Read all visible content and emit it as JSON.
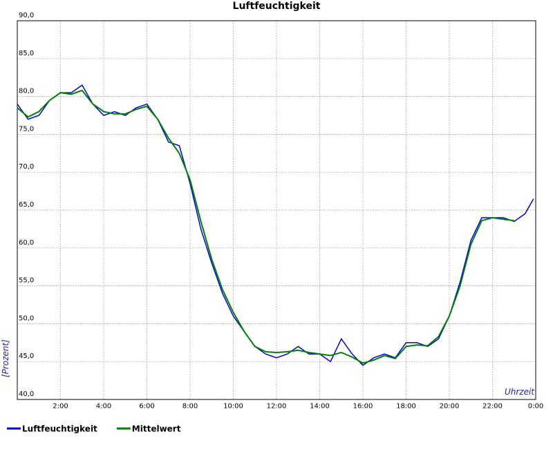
{
  "chart_data": {
    "type": "line",
    "title": "Luftfeuchtigkeit",
    "x_label": "Uhrzeit",
    "y_label": "[Prozent]",
    "x": [
      0,
      0.5,
      1,
      1.5,
      2,
      2.5,
      3,
      3.5,
      4,
      4.5,
      5,
      5.5,
      6,
      6.5,
      7,
      7.5,
      8,
      8.5,
      9,
      9.5,
      10,
      10.5,
      11,
      11.5,
      12,
      12.5,
      13,
      13.5,
      14,
      14.5,
      15,
      15.5,
      16,
      16.5,
      17,
      17.5,
      18,
      18.5,
      19,
      19.5,
      20,
      20.5,
      21,
      21.5,
      22,
      22.5,
      23,
      23.5,
      23.9
    ],
    "series": [
      {
        "name": "Luftfeuchtigkeit",
        "color": "#0000ee",
        "values": [
          79,
          77,
          77.5,
          79.5,
          80.5,
          80.5,
          81.5,
          79,
          77.5,
          78,
          77.5,
          78.5,
          79,
          77,
          74,
          73.5,
          68.5,
          62.5,
          58,
          54,
          51,
          49,
          47,
          46,
          45.5,
          46,
          47,
          46,
          46,
          45,
          48,
          46,
          44.5,
          45.5,
          46,
          45.5,
          47.5,
          47.5,
          47,
          48,
          51,
          55.5,
          61,
          64,
          64,
          64,
          63.5,
          64.5,
          66.5
        ]
      },
      {
        "name": "Mittelwert",
        "color": "#008000",
        "values": [
          78.5,
          77.3,
          78,
          79.5,
          80.5,
          80.3,
          80.8,
          79,
          78,
          77.7,
          77.7,
          78.3,
          78.7,
          77,
          74.5,
          72.5,
          69,
          63.5,
          58.5,
          54.5,
          51.5,
          49,
          47,
          46.3,
          46.2,
          46.3,
          46.5,
          46.2,
          46,
          45.8,
          46.2,
          45.6,
          44.8,
          45.2,
          45.8,
          45.4,
          47,
          47.2,
          47.1,
          48.3,
          51,
          55,
          60.5,
          63.6,
          64,
          63.8,
          63.6,
          null,
          null
        ]
      }
    ],
    "xlim": [
      0,
      24
    ],
    "xticks": [
      {
        "value": 2,
        "label": "2:00"
      },
      {
        "value": 4,
        "label": "4:00"
      },
      {
        "value": 6,
        "label": "6:00"
      },
      {
        "value": 8,
        "label": "8:00"
      },
      {
        "value": 10,
        "label": "10:00"
      },
      {
        "value": 12,
        "label": "12:00"
      },
      {
        "value": 14,
        "label": "14:00"
      },
      {
        "value": 16,
        "label": "16:00"
      },
      {
        "value": 18,
        "label": "18:00"
      },
      {
        "value": 20,
        "label": "20:00"
      },
      {
        "value": 22,
        "label": "22:00"
      },
      {
        "value": 24,
        "label": "0:00"
      }
    ],
    "ylim": [
      40,
      90
    ],
    "yticks": [
      {
        "value": 40,
        "label": "40,0"
      },
      {
        "value": 45,
        "label": "45,0"
      },
      {
        "value": 50,
        "label": "50,0"
      },
      {
        "value": 55,
        "label": "55,0"
      },
      {
        "value": 60,
        "label": "60,0"
      },
      {
        "value": 65,
        "label": "65,0"
      },
      {
        "value": 70,
        "label": "70,0"
      },
      {
        "value": 75,
        "label": "75,0"
      },
      {
        "value": 80,
        "label": "80,0"
      },
      {
        "value": 85,
        "label": "85,0"
      },
      {
        "value": 90,
        "label": "90,0"
      }
    ],
    "grid": true,
    "legend": "bottom"
  }
}
